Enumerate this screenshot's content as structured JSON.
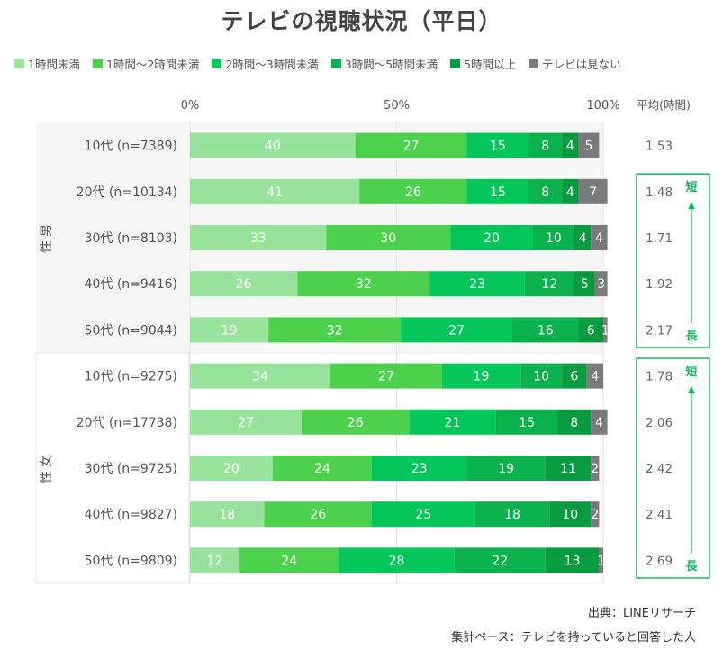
{
  "title": "テレビの視聴状況（平日）",
  "source": "出典：LINEリサーチ",
  "base_note": "集計ベース：テレビを持っていると回答した人",
  "avg_header": "平均(時間)",
  "axis_ticks": [
    "0%",
    "50%",
    "100%"
  ],
  "groups": [
    {
      "label": "男性",
      "rows": [
        0,
        4
      ]
    },
    {
      "label": "女性",
      "rows": [
        5,
        9
      ]
    }
  ],
  "arrow_labels": {
    "short": "短",
    "long": "長"
  },
  "colors": {
    "1時間未満": "#97e39b",
    "1時間〜2時間未満": "#4cd14c",
    "2時間〜3時間未満": "#05c65a",
    "3時間〜5時間未満": "#0bb14c",
    "5時間以上": "#089a3e",
    "テレビは見ない": "#7a7a7a",
    "accent": "#19b55d"
  },
  "chart_data": {
    "type": "bar",
    "orientation": "horizontal",
    "stacked": true,
    "title": "テレビの視聴状況（平日）",
    "categories": [
      "10代 (n=7389)",
      "20代 (n=10134)",
      "30代 (n=8103)",
      "40代 (n=9416)",
      "50代 (n=9044)",
      "10代 (n=9275)",
      "20代 (n=17738)",
      "30代 (n=9725)",
      "40代 (n=9827)",
      "50代 (n=9809)"
    ],
    "series": [
      {
        "name": "1時間未満",
        "values": [
          40,
          41,
          33,
          26,
          19,
          34,
          27,
          20,
          18,
          12
        ]
      },
      {
        "name": "1時間〜2時間未満",
        "values": [
          27,
          26,
          30,
          32,
          32,
          27,
          26,
          24,
          26,
          24
        ]
      },
      {
        "name": "2時間〜3時間未満",
        "values": [
          15,
          15,
          20,
          23,
          27,
          19,
          21,
          23,
          25,
          28
        ]
      },
      {
        "name": "3時間〜5時間未満",
        "values": [
          8,
          8,
          10,
          12,
          16,
          10,
          15,
          19,
          18,
          22
        ]
      },
      {
        "name": "5時間以上",
        "values": [
          4,
          4,
          4,
          5,
          6,
          6,
          8,
          11,
          10,
          13
        ]
      },
      {
        "name": "テレビは見ない",
        "values": [
          5,
          7,
          4,
          3,
          1,
          4,
          4,
          2,
          2,
          1
        ]
      }
    ],
    "averages": [
      "1.53",
      "1.48",
      "1.71",
      "1.92",
      "2.17",
      "1.78",
      "2.06",
      "2.42",
      "2.41",
      "2.69"
    ],
    "xlim": [
      0,
      100
    ],
    "legend_position": "top",
    "grid": true
  }
}
